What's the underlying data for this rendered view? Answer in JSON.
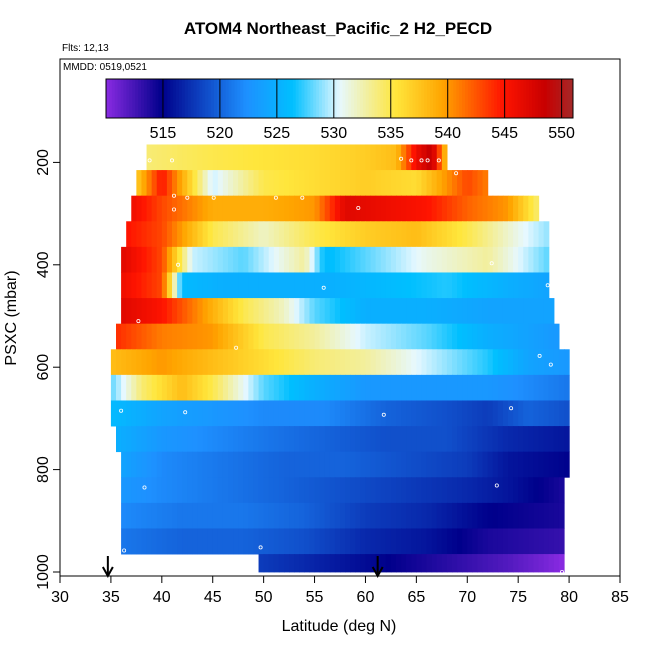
{
  "chart_data": {
    "type": "heatmap",
    "title": "ATOM4 Northeast_Pacific_2 H2_PECD",
    "flights_label": "Flts: 12,13",
    "dates_label": "MMDD: 0519,0521",
    "xlabel": "Latitude (deg N)",
    "ylabel": "PSXC (mbar)",
    "xlim": [
      30,
      85
    ],
    "ylim": [
      1000,
      0
    ],
    "x_ticks": [
      30,
      35,
      40,
      45,
      50,
      55,
      60,
      65,
      70,
      75,
      80,
      85
    ],
    "y_ticks": [
      200,
      400,
      600,
      800,
      1000
    ],
    "colorbar": {
      "range": [
        510,
        551
      ],
      "ticks": [
        515,
        520,
        525,
        530,
        535,
        540,
        545,
        550
      ]
    },
    "arrows_at_latitude": [
      34.7,
      61.2
    ],
    "rows": [
      {
        "p_top": 165,
        "p_bot": 215,
        "lat_min": 38.5,
        "lat_max": 68.0,
        "anchors": [
          [
            38.5,
            534
          ],
          [
            45,
            535
          ],
          [
            55,
            536
          ],
          [
            60,
            537
          ],
          [
            63,
            538
          ],
          [
            65,
            546
          ],
          [
            66.5,
            549
          ],
          [
            68,
            537
          ]
        ]
      },
      {
        "p_top": 215,
        "p_bot": 265,
        "lat_min": 37.5,
        "lat_max": 72.0,
        "anchors": [
          [
            37.5,
            537
          ],
          [
            40,
            545
          ],
          [
            42,
            539
          ],
          [
            45,
            530
          ],
          [
            50,
            535
          ],
          [
            55,
            536
          ],
          [
            60,
            537
          ],
          [
            65,
            536
          ],
          [
            70,
            543
          ],
          [
            72,
            541
          ]
        ]
      },
      {
        "p_top": 265,
        "p_bot": 315,
        "lat_min": 37.0,
        "lat_max": 77.0,
        "anchors": [
          [
            37,
            546
          ],
          [
            40,
            543
          ],
          [
            45,
            539
          ],
          [
            50,
            539
          ],
          [
            55,
            540
          ],
          [
            58,
            547
          ],
          [
            62,
            546
          ],
          [
            66,
            545
          ],
          [
            70,
            542
          ],
          [
            74,
            540
          ],
          [
            77,
            534
          ]
        ]
      },
      {
        "p_top": 315,
        "p_bot": 365,
        "lat_min": 36.5,
        "lat_max": 78.0,
        "anchors": [
          [
            36.5,
            545
          ],
          [
            40,
            543
          ],
          [
            45,
            535
          ],
          [
            50,
            532
          ],
          [
            55,
            535
          ],
          [
            60,
            537
          ],
          [
            65,
            538
          ],
          [
            70,
            535
          ],
          [
            75,
            531
          ],
          [
            78,
            529
          ]
        ]
      },
      {
        "p_top": 365,
        "p_bot": 415,
        "lat_min": 36.0,
        "lat_max": 78.0,
        "anchors": [
          [
            36,
            547
          ],
          [
            40,
            543
          ],
          [
            43,
            530
          ],
          [
            48,
            528
          ],
          [
            54,
            533
          ],
          [
            56,
            526
          ],
          [
            60,
            528
          ],
          [
            66,
            531
          ],
          [
            72,
            533
          ],
          [
            78,
            528
          ]
        ]
      },
      {
        "p_top": 415,
        "p_bot": 465,
        "lat_min": 36.0,
        "lat_max": 78.0,
        "anchors": [
          [
            36,
            546
          ],
          [
            40,
            543
          ],
          [
            42,
            526
          ],
          [
            46,
            525
          ],
          [
            52,
            525
          ],
          [
            56,
            525
          ],
          [
            62,
            526
          ],
          [
            68,
            527
          ],
          [
            74,
            525
          ],
          [
            78,
            524
          ]
        ]
      },
      {
        "p_top": 465,
        "p_bot": 515,
        "lat_min": 36.0,
        "lat_max": 78.5,
        "anchors": [
          [
            36,
            547
          ],
          [
            40,
            545
          ],
          [
            44,
            540
          ],
          [
            48,
            535
          ],
          [
            52,
            532
          ],
          [
            55,
            528
          ],
          [
            60,
            525
          ],
          [
            66,
            525
          ],
          [
            72,
            524
          ],
          [
            78.5,
            524
          ]
        ]
      },
      {
        "p_top": 515,
        "p_bot": 565,
        "lat_min": 35.5,
        "lat_max": 79.0,
        "anchors": [
          [
            35.5,
            544
          ],
          [
            40,
            541
          ],
          [
            45,
            540
          ],
          [
            50,
            535
          ],
          [
            55,
            533
          ],
          [
            60,
            530
          ],
          [
            66,
            528
          ],
          [
            72,
            525
          ],
          [
            79,
            523
          ]
        ]
      },
      {
        "p_top": 565,
        "p_bot": 615,
        "lat_min": 35.0,
        "lat_max": 80.0,
        "anchors": [
          [
            35,
            538
          ],
          [
            40,
            540
          ],
          [
            45,
            538
          ],
          [
            50,
            536
          ],
          [
            55,
            534
          ],
          [
            60,
            533
          ],
          [
            66,
            530
          ],
          [
            72,
            527
          ],
          [
            76,
            524
          ],
          [
            80,
            523
          ]
        ]
      },
      {
        "p_top": 615,
        "p_bot": 665,
        "lat_min": 35.0,
        "lat_max": 80.0,
        "anchors": [
          [
            35,
            528
          ],
          [
            38,
            534
          ],
          [
            42,
            538
          ],
          [
            45,
            535
          ],
          [
            50,
            528
          ],
          [
            55,
            525
          ],
          [
            60,
            523
          ],
          [
            66,
            523
          ],
          [
            72,
            523
          ],
          [
            76,
            522
          ],
          [
            80,
            521
          ]
        ]
      },
      {
        "p_top": 665,
        "p_bot": 715,
        "lat_min": 35.0,
        "lat_max": 80.0,
        "anchors": [
          [
            35,
            526
          ],
          [
            40,
            524
          ],
          [
            45,
            523
          ],
          [
            50,
            522
          ],
          [
            56,
            522
          ],
          [
            62,
            520
          ],
          [
            68,
            519
          ],
          [
            72,
            518
          ],
          [
            76,
            520
          ],
          [
            80,
            519
          ]
        ]
      },
      {
        "p_top": 715,
        "p_bot": 765,
        "lat_min": 35.5,
        "lat_max": 80.0,
        "anchors": [
          [
            35.5,
            525
          ],
          [
            40,
            523
          ],
          [
            45,
            522
          ],
          [
            50,
            521
          ],
          [
            56,
            520
          ],
          [
            62,
            519
          ],
          [
            68,
            519
          ],
          [
            74,
            517
          ],
          [
            80,
            516
          ]
        ]
      },
      {
        "p_top": 765,
        "p_bot": 815,
        "lat_min": 36.0,
        "lat_max": 80.0,
        "anchors": [
          [
            36,
            524
          ],
          [
            40,
            522
          ],
          [
            46,
            521
          ],
          [
            52,
            520
          ],
          [
            58,
            520
          ],
          [
            64,
            519
          ],
          [
            70,
            518
          ],
          [
            74,
            516
          ],
          [
            80,
            515
          ]
        ]
      },
      {
        "p_top": 815,
        "p_bot": 865,
        "lat_min": 36.0,
        "lat_max": 79.5,
        "anchors": [
          [
            36,
            523
          ],
          [
            40,
            522
          ],
          [
            46,
            521
          ],
          [
            52,
            520
          ],
          [
            58,
            519
          ],
          [
            64,
            518
          ],
          [
            70,
            517
          ],
          [
            74,
            516
          ],
          [
            79.5,
            514
          ]
        ]
      },
      {
        "p_top": 865,
        "p_bot": 915,
        "lat_min": 36.0,
        "lat_max": 79.5,
        "anchors": [
          [
            36,
            522
          ],
          [
            42,
            521
          ],
          [
            48,
            521
          ],
          [
            54,
            520
          ],
          [
            60,
            518
          ],
          [
            66,
            517
          ],
          [
            72,
            515
          ],
          [
            79.5,
            514
          ]
        ]
      },
      {
        "p_top": 915,
        "p_bot": 965,
        "lat_min": 36.0,
        "lat_max": 79.5,
        "anchors": [
          [
            36,
            521
          ],
          [
            42,
            520
          ],
          [
            48,
            520
          ],
          [
            54,
            519
          ],
          [
            60,
            517
          ],
          [
            66,
            516
          ],
          [
            72,
            514
          ],
          [
            79.5,
            513
          ]
        ]
      },
      {
        "p_top": 965,
        "p_bot": 1000,
        "lat_min": 49.5,
        "lat_max": 79.5,
        "anchors": [
          [
            49.5,
            518
          ],
          [
            54,
            517
          ],
          [
            58,
            516
          ],
          [
            62,
            515
          ],
          [
            66,
            514
          ],
          [
            70,
            513
          ],
          [
            74,
            512
          ],
          [
            77,
            511
          ],
          [
            79.5,
            510
          ]
        ]
      }
    ],
    "sample_points": [
      [
        38.8,
        196
      ],
      [
        41.0,
        196
      ],
      [
        63.5,
        193
      ],
      [
        64.5,
        196
      ],
      [
        65.5,
        196
      ],
      [
        66.1,
        196
      ],
      [
        67.2,
        196
      ],
      [
        68.9,
        221
      ],
      [
        41.2,
        265
      ],
      [
        42.5,
        269
      ],
      [
        45.1,
        269
      ],
      [
        51.2,
        269
      ],
      [
        53.8,
        269
      ],
      [
        59.3,
        289
      ],
      [
        41.2,
        292
      ],
      [
        41.6,
        400
      ],
      [
        55.9,
        445
      ],
      [
        77.9,
        440
      ],
      [
        72.4,
        397
      ],
      [
        37.7,
        510
      ],
      [
        47.3,
        562
      ],
      [
        77.1,
        578
      ],
      [
        78.2,
        595
      ],
      [
        36.0,
        685
      ],
      [
        42.3,
        688
      ],
      [
        61.8,
        693
      ],
      [
        74.3,
        680
      ],
      [
        38.3,
        835
      ],
      [
        72.9,
        831
      ],
      [
        49.7,
        952
      ],
      [
        36.3,
        958
      ],
      [
        79.3,
        1000
      ]
    ]
  }
}
